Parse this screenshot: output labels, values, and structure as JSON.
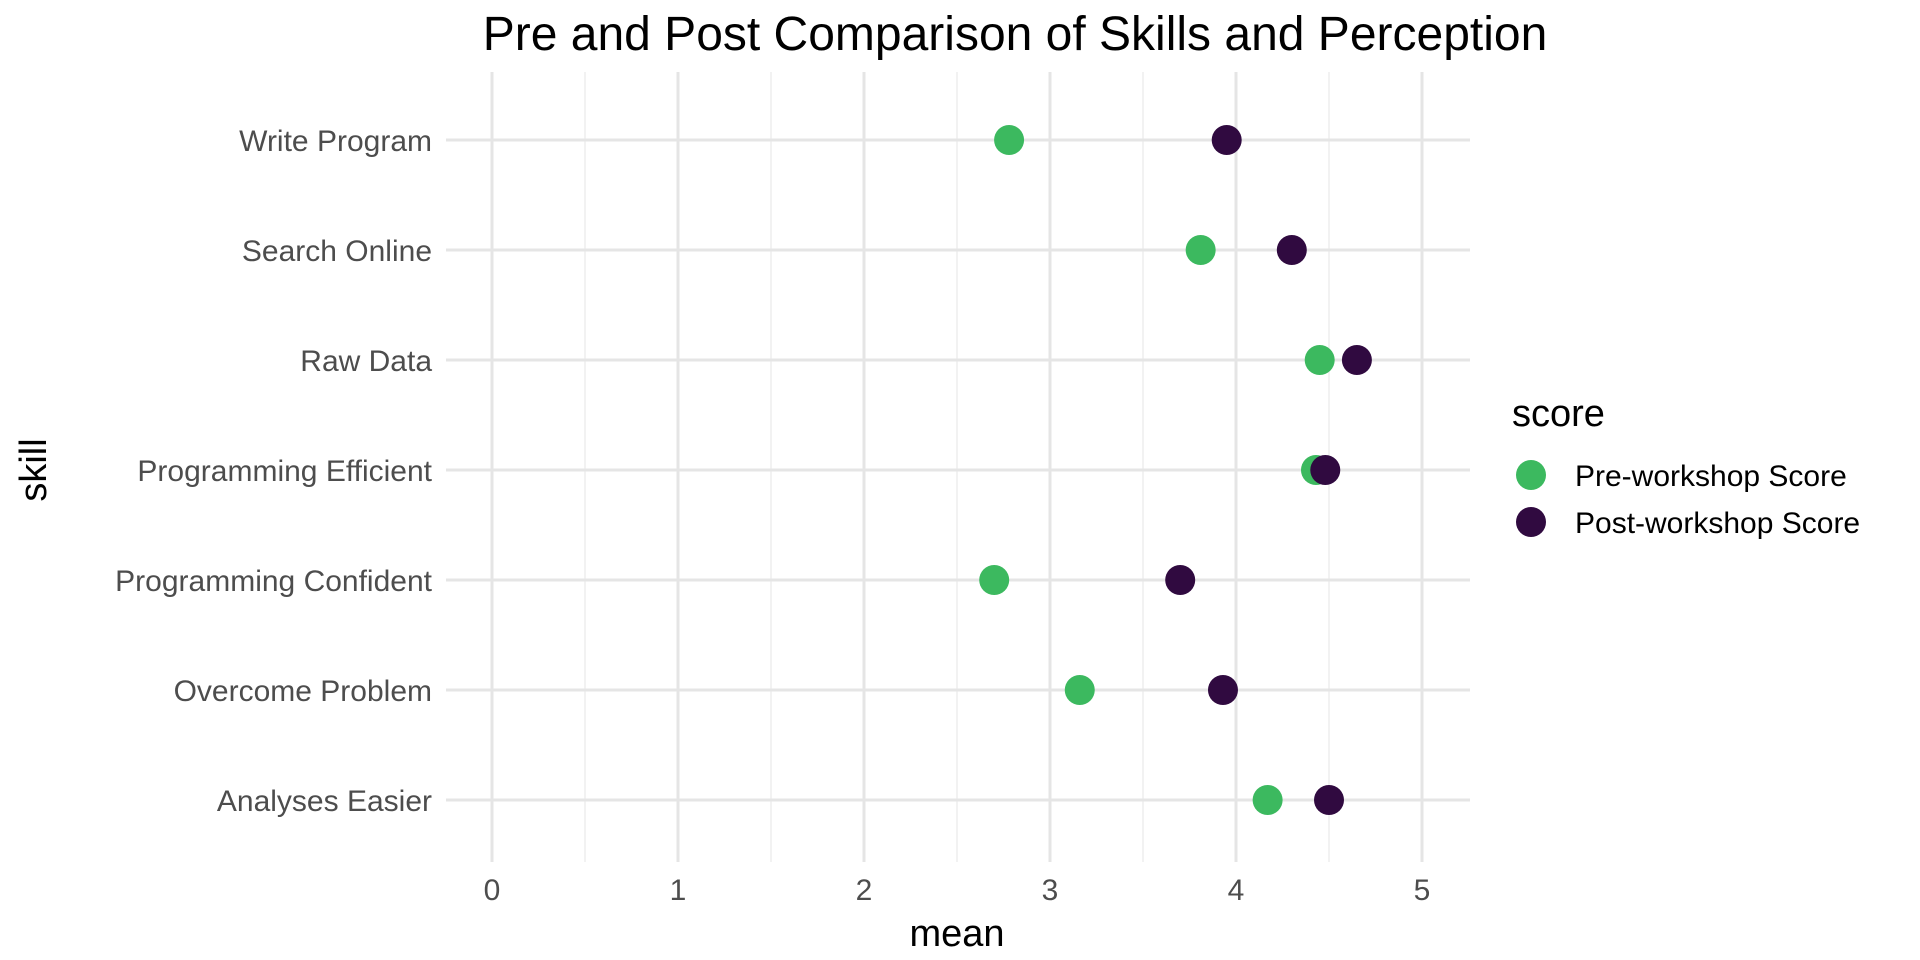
{
  "chart_data": {
    "type": "scatter",
    "title": "Pre and Post Comparison of Skills and Perception",
    "xlabel": "mean",
    "ylabel": "skill",
    "xlim": [
      -0.25,
      5.25
    ],
    "x_ticks": [
      0,
      1,
      2,
      3,
      4,
      5
    ],
    "categories": [
      "Write Program",
      "Search Online",
      "Raw Data",
      "Programming Efficient",
      "Programming Confident",
      "Overcome Problem",
      "Analyses Easier"
    ],
    "legend_title": "score",
    "legend_position": "right",
    "grid": true,
    "series": [
      {
        "name": "Pre-workshop Score",
        "color": "#3cb95f",
        "values": [
          2.78,
          3.81,
          4.45,
          4.43,
          2.7,
          3.16,
          4.17
        ]
      },
      {
        "name": "Post-workshop Score",
        "color": "#300a40",
        "values": [
          3.95,
          4.3,
          4.65,
          4.48,
          3.7,
          3.93,
          4.5
        ]
      }
    ]
  }
}
